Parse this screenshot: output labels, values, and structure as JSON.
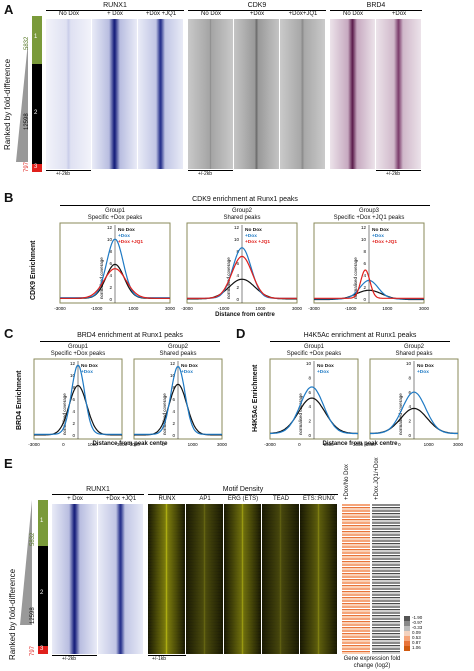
{
  "panelA": {
    "letter": "A",
    "groups": [
      {
        "name": "RUNX1",
        "tracks": [
          "No Dox",
          "+ Dox",
          "+Dox +JQ1"
        ]
      },
      {
        "name": "CDK9",
        "tracks": [
          "No Dox",
          "+Dox",
          "+Dox+JQ1"
        ]
      },
      {
        "name": "BRD4",
        "tracks": [
          "No Dox",
          "+Dox"
        ]
      }
    ],
    "ylabel": "Ranked by fold-difference",
    "clusters": [
      "5832",
      "12598",
      "797"
    ],
    "cluster_ids": [
      "1",
      "2",
      "3"
    ],
    "scale": "+/-2kb",
    "colors": {
      "green": "#7a9a3a",
      "black": "#000000",
      "red": "#e0201c",
      "runx1": "#1a237e",
      "cdk9": "#555555",
      "brd4": "#5a1a4a"
    }
  },
  "panelB": {
    "letter": "B",
    "title": "CDK9 enrichment at Runx1 peaks",
    "ylabel": "CDK9 Enrichment",
    "xlabel": "Distance from centre",
    "ytick_label": "normalised coverage",
    "plots": [
      {
        "group": "Group1",
        "sub": "Specific +Dox peaks",
        "yticks": [
          "12",
          "10",
          "8",
          "6",
          "4",
          "2",
          "0"
        ]
      },
      {
        "group": "Group2",
        "sub": "Shared peaks",
        "yticks": [
          "12",
          "10",
          "8",
          "6",
          "4",
          "2",
          "0"
        ]
      },
      {
        "group": "Group3",
        "sub": "Specific +Dox +JQ1 peaks",
        "yticks": [
          "12",
          "10",
          "8",
          "6",
          "4",
          "2",
          "0"
        ]
      }
    ],
    "xticks": [
      "-3000",
      "-1000",
      "1000",
      "3000"
    ],
    "legend": [
      "No Dox",
      "+Dox",
      "+Dox +JQ1"
    ]
  },
  "panelC": {
    "letter": "C",
    "title": "BRD4 enrichment at Runx1 peaks",
    "ylabel": "BRD4 Enrichment",
    "xlabel": "Distance from peak centre",
    "ytick_label": "normalised coverage",
    "plots": [
      {
        "group": "Group1",
        "sub": "Specific +Dox peaks",
        "yticks": [
          "12",
          "10",
          "8",
          "6",
          "4",
          "2",
          "0"
        ]
      },
      {
        "group": "Group2",
        "sub": "Shared peaks",
        "yticks": [
          "12",
          "10",
          "8",
          "6",
          "4",
          "2",
          "0"
        ]
      }
    ],
    "xticks": [
      "-3000",
      "0",
      "1000",
      "3000"
    ],
    "legend": [
      "No Dox",
      "+Dox"
    ]
  },
  "panelD": {
    "letter": "D",
    "title": "H4K5Ac enrichment at Runx1 peaks",
    "ylabel": "H4K5Ac Enrichment",
    "xlabel": "Distance from peak centre",
    "ytick_label": "normalised coverage",
    "plots": [
      {
        "group": "Group1",
        "sub": "Specific +Dox peaks",
        "yticks": [
          "10",
          "8",
          "6",
          "4",
          "2",
          "0"
        ]
      },
      {
        "group": "Group2",
        "sub": "Shared peaks",
        "yticks": [
          "10",
          "8",
          "6",
          "4",
          "2",
          "0"
        ]
      }
    ],
    "xticks": [
      "-3000",
      "0",
      "1000",
      "3000"
    ],
    "legend": [
      "No Dox",
      "+Dox"
    ]
  },
  "panelE": {
    "letter": "E",
    "runx1_title": "RUNX1",
    "runx1_tracks": [
      "+ Dox",
      "+Dox +JQ1"
    ],
    "motif_title": "Motif Density",
    "motifs": [
      "RUNX",
      "AP1",
      "ERG (ETS)",
      "TEAD",
      "ETS::RUNX"
    ],
    "expr_cols": [
      "+Dox/No Dox",
      "+Dox.JQ1/+Dox"
    ],
    "expr_label": "Gene expression fold change (log2)",
    "scale_runx": "+/-2kb",
    "scale_motif": "+/-1kb",
    "ylabel": "Ranked by fold-difference",
    "clusters": [
      "5832",
      "12598",
      "797"
    ],
    "cluster_ids": [
      "1",
      "2",
      "3"
    ],
    "colorbar_ticks": [
      "-1.90",
      "-0.97",
      "-0.33",
      "0.09",
      "0.53",
      "0.87",
      "1.06"
    ]
  }
}
